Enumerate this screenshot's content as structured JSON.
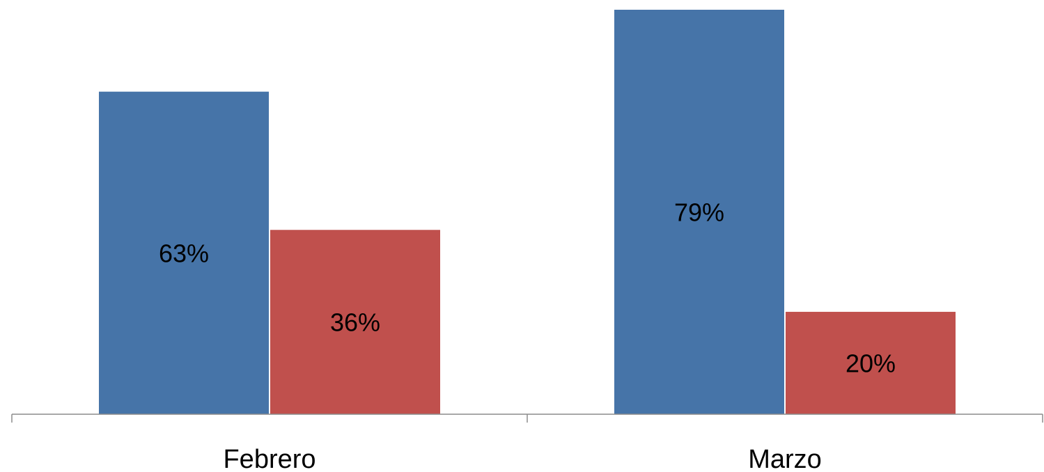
{
  "chart_data": {
    "type": "bar",
    "categories": [
      "Febrero",
      "Marzo"
    ],
    "series": [
      {
        "values": [
          63,
          79
        ],
        "labels": [
          "63%",
          "79%"
        ],
        "color": "#4674A8"
      },
      {
        "values": [
          36,
          20
        ],
        "labels": [
          "36%",
          "20%"
        ],
        "color": "#C0504D"
      }
    ],
    "ylim": [
      0,
      100
    ],
    "grid": false,
    "legend": "none"
  }
}
